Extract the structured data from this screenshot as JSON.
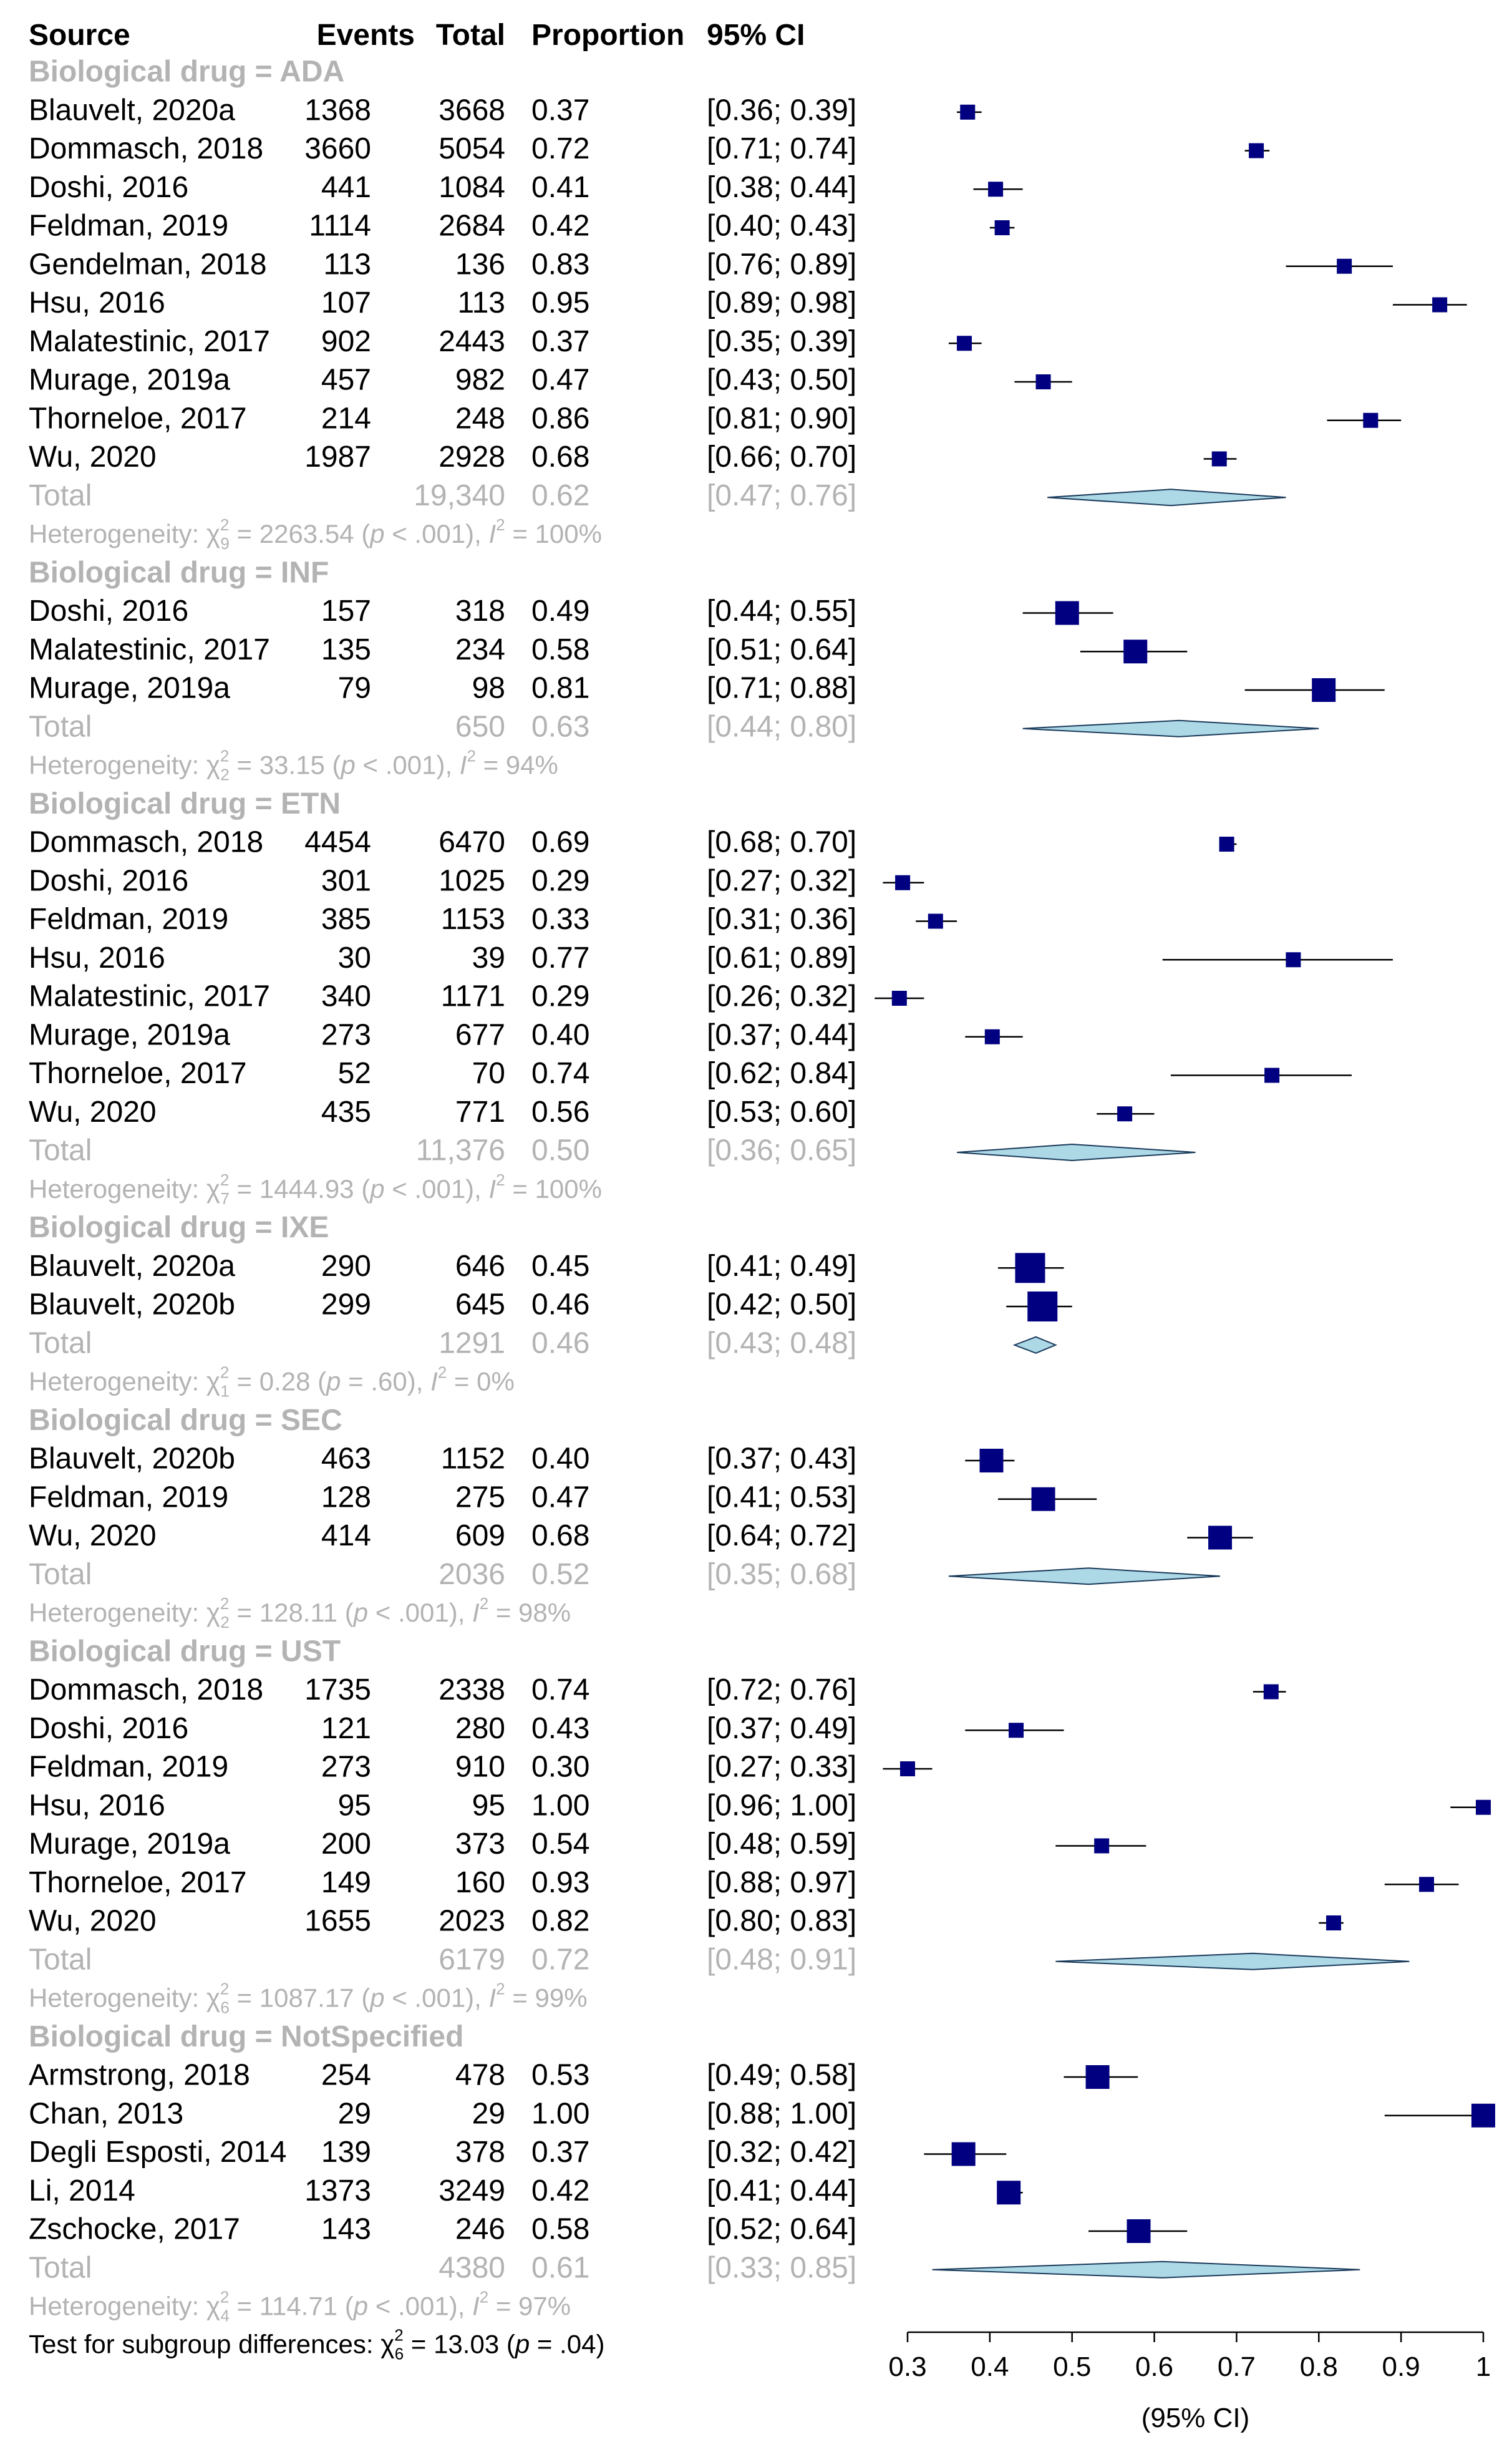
{
  "colors": {
    "text": "#000000",
    "muted": "#b3b3b3",
    "marker": "#000080",
    "diamond_fill": "#add8e6",
    "diamond_stroke": "#1a3a5a"
  },
  "header": {
    "source": "Source",
    "events": "Events",
    "total": "Total",
    "proportion": "Proportion",
    "ci": "95% CI"
  },
  "chart_data": {
    "type": "forest",
    "axis": {
      "range": [
        0.3,
        1.0
      ],
      "ticks": [
        "0.3",
        "0.4",
        "0.5",
        "0.6",
        "0.7",
        "0.8",
        "0.9",
        "1"
      ],
      "tick_values": [
        0.3,
        0.4,
        0.5,
        0.6,
        0.7,
        0.8,
        0.9,
        1.0
      ],
      "label": "(95% CI)"
    },
    "groups": [
      {
        "label": "Biological drug = ADA",
        "studies": [
          {
            "source": "Blauvelt, 2020a",
            "events": "1368",
            "total": "3668",
            "prop": "0.37",
            "ci": "[0.36; 0.39]",
            "est": 0.373,
            "lo": 0.36,
            "hi": 0.39,
            "weight": 1
          },
          {
            "source": "Dommasch, 2018",
            "events": "3660",
            "total": "5054",
            "prop": "0.72",
            "ci": "[0.71; 0.74]",
            "est": 0.724,
            "lo": 0.71,
            "hi": 0.74,
            "weight": 1
          },
          {
            "source": "Doshi, 2016",
            "events": "441",
            "total": "1084",
            "prop": "0.41",
            "ci": "[0.38; 0.44]",
            "est": 0.407,
            "lo": 0.38,
            "hi": 0.44,
            "weight": 1
          },
          {
            "source": "Feldman, 2019",
            "events": "1114",
            "total": "2684",
            "prop": "0.42",
            "ci": "[0.40; 0.43]",
            "est": 0.415,
            "lo": 0.4,
            "hi": 0.43,
            "weight": 1
          },
          {
            "source": "Gendelman, 2018",
            "events": "113",
            "total": "136",
            "prop": "0.83",
            "ci": "[0.76; 0.89]",
            "est": 0.831,
            "lo": 0.76,
            "hi": 0.89,
            "weight": 1
          },
          {
            "source": "Hsu, 2016",
            "events": "107",
            "total": "113",
            "prop": "0.95",
            "ci": "[0.89; 0.98]",
            "est": 0.947,
            "lo": 0.89,
            "hi": 0.98,
            "weight": 1
          },
          {
            "source": "Malatestinic, 2017",
            "events": "902",
            "total": "2443",
            "prop": "0.37",
            "ci": "[0.35; 0.39]",
            "est": 0.369,
            "lo": 0.35,
            "hi": 0.39,
            "weight": 1
          },
          {
            "source": "Murage, 2019a",
            "events": "457",
            "total": "982",
            "prop": "0.47",
            "ci": "[0.43; 0.50]",
            "est": 0.465,
            "lo": 0.43,
            "hi": 0.5,
            "weight": 1
          },
          {
            "source": "Thorneloe, 2017",
            "events": "214",
            "total": "248",
            "prop": "0.86",
            "ci": "[0.81; 0.90]",
            "est": 0.863,
            "lo": 0.81,
            "hi": 0.9,
            "weight": 1
          },
          {
            "source": "Wu, 2020",
            "events": "1987",
            "total": "2928",
            "prop": "0.68",
            "ci": "[0.66; 0.70]",
            "est": 0.679,
            "lo": 0.66,
            "hi": 0.7,
            "weight": 1
          }
        ],
        "pooled": {
          "label": "Total",
          "total": "19,340",
          "prop": "0.62",
          "ci": "[0.47; 0.76]",
          "est": 0.62,
          "lo": 0.47,
          "hi": 0.76
        },
        "heterogeneity": {
          "prefix": "Heterogeneity: ",
          "chi": "χ",
          "df": "9",
          "stat": " = 2263.54 (",
          "p": "p",
          "pval": " < .001), ",
          "i": "I",
          "ival": " = 100%"
        }
      },
      {
        "label": "Biological drug = INF",
        "studies": [
          {
            "source": "Doshi, 2016",
            "events": "157",
            "total": "318",
            "prop": "0.49",
            "ci": "[0.44; 0.55]",
            "est": 0.494,
            "lo": 0.44,
            "hi": 0.55,
            "weight": 2
          },
          {
            "source": "Malatestinic, 2017",
            "events": "135",
            "total": "234",
            "prop": "0.58",
            "ci": "[0.51; 0.64]",
            "est": 0.577,
            "lo": 0.51,
            "hi": 0.64,
            "weight": 2
          },
          {
            "source": "Murage, 2019a",
            "events": "79",
            "total": "98",
            "prop": "0.81",
            "ci": "[0.71; 0.88]",
            "est": 0.806,
            "lo": 0.71,
            "hi": 0.88,
            "weight": 2
          }
        ],
        "pooled": {
          "label": "Total",
          "total": "650",
          "prop": "0.63",
          "ci": "[0.44; 0.80]",
          "est": 0.63,
          "lo": 0.44,
          "hi": 0.8
        },
        "heterogeneity": {
          "prefix": "Heterogeneity: ",
          "chi": "χ",
          "df": "2",
          "stat": " = 33.15 (",
          "p": "p",
          "pval": " < .001), ",
          "i": "I",
          "ival": " = 94%"
        }
      },
      {
        "label": "Biological drug = ETN",
        "studies": [
          {
            "source": "Dommasch, 2018",
            "events": "4454",
            "total": "6470",
            "prop": "0.69",
            "ci": "[0.68; 0.70]",
            "est": 0.688,
            "lo": 0.68,
            "hi": 0.7,
            "weight": 1
          },
          {
            "source": "Doshi, 2016",
            "events": "301",
            "total": "1025",
            "prop": "0.29",
            "ci": "[0.27; 0.32]",
            "est": 0.294,
            "lo": 0.27,
            "hi": 0.32,
            "weight": 1
          },
          {
            "source": "Feldman, 2019",
            "events": "385",
            "total": "1153",
            "prop": "0.33",
            "ci": "[0.31; 0.36]",
            "est": 0.334,
            "lo": 0.31,
            "hi": 0.36,
            "weight": 1
          },
          {
            "source": "Hsu, 2016",
            "events": "30",
            "total": "39",
            "prop": "0.77",
            "ci": "[0.61; 0.89]",
            "est": 0.769,
            "lo": 0.61,
            "hi": 0.89,
            "weight": 1
          },
          {
            "source": "Malatestinic, 2017",
            "events": "340",
            "total": "1171",
            "prop": "0.29",
            "ci": "[0.26; 0.32]",
            "est": 0.29,
            "lo": 0.26,
            "hi": 0.32,
            "weight": 1
          },
          {
            "source": "Murage, 2019a",
            "events": "273",
            "total": "677",
            "prop": "0.40",
            "ci": "[0.37; 0.44]",
            "est": 0.403,
            "lo": 0.37,
            "hi": 0.44,
            "weight": 1
          },
          {
            "source": "Thorneloe, 2017",
            "events": "52",
            "total": "70",
            "prop": "0.74",
            "ci": "[0.62; 0.84]",
            "est": 0.743,
            "lo": 0.62,
            "hi": 0.84,
            "weight": 1
          },
          {
            "source": "Wu, 2020",
            "events": "435",
            "total": "771",
            "prop": "0.56",
            "ci": "[0.53; 0.60]",
            "est": 0.564,
            "lo": 0.53,
            "hi": 0.6,
            "weight": 1
          }
        ],
        "pooled": {
          "label": "Total",
          "total": "11,376",
          "prop": "0.50",
          "ci": "[0.36; 0.65]",
          "est": 0.5,
          "lo": 0.36,
          "hi": 0.65
        },
        "heterogeneity": {
          "prefix": "Heterogeneity: ",
          "chi": "χ",
          "df": "7",
          "stat": " = 1444.93 (",
          "p": "p",
          "pval": " < .001), ",
          "i": "I",
          "ival": " = 100%"
        }
      },
      {
        "label": "Biological drug = IXE",
        "studies": [
          {
            "source": "Blauvelt, 2020a",
            "events": "290",
            "total": "646",
            "prop": "0.45",
            "ci": "[0.41; 0.49]",
            "est": 0.449,
            "lo": 0.41,
            "hi": 0.49,
            "weight": 3
          },
          {
            "source": "Blauvelt, 2020b",
            "events": "299",
            "total": "645",
            "prop": "0.46",
            "ci": "[0.42; 0.50]",
            "est": 0.464,
            "lo": 0.42,
            "hi": 0.5,
            "weight": 3
          }
        ],
        "pooled": {
          "label": "Total",
          "total": "1291",
          "prop": "0.46",
          "ci": "[0.43; 0.48]",
          "est": 0.456,
          "lo": 0.43,
          "hi": 0.48
        },
        "heterogeneity": {
          "prefix": "Heterogeneity: ",
          "chi": "χ",
          "df": "1",
          "stat": " = 0.28 (",
          "p": "p",
          "pval": " = .60), ",
          "i": "I",
          "ival": " = 0%"
        }
      },
      {
        "label": "Biological drug = SEC",
        "studies": [
          {
            "source": "Blauvelt, 2020b",
            "events": "463",
            "total": "1152",
            "prop": "0.40",
            "ci": "[0.37; 0.43]",
            "est": 0.402,
            "lo": 0.37,
            "hi": 0.43,
            "weight": 2
          },
          {
            "source": "Feldman, 2019",
            "events": "128",
            "total": "275",
            "prop": "0.47",
            "ci": "[0.41; 0.53]",
            "est": 0.465,
            "lo": 0.41,
            "hi": 0.53,
            "weight": 2
          },
          {
            "source": "Wu, 2020",
            "events": "414",
            "total": "609",
            "prop": "0.68",
            "ci": "[0.64; 0.72]",
            "est": 0.68,
            "lo": 0.64,
            "hi": 0.72,
            "weight": 2
          }
        ],
        "pooled": {
          "label": "Total",
          "total": "2036",
          "prop": "0.52",
          "ci": "[0.35; 0.68]",
          "est": 0.52,
          "lo": 0.35,
          "hi": 0.68
        },
        "heterogeneity": {
          "prefix": "Heterogeneity: ",
          "chi": "χ",
          "df": "2",
          "stat": " = 128.11 (",
          "p": "p",
          "pval": " < .001), ",
          "i": "I",
          "ival": " = 98%"
        }
      },
      {
        "label": "Biological drug = UST",
        "studies": [
          {
            "source": "Dommasch, 2018",
            "events": "1735",
            "total": "2338",
            "prop": "0.74",
            "ci": "[0.72; 0.76]",
            "est": 0.742,
            "lo": 0.72,
            "hi": 0.76,
            "weight": 1
          },
          {
            "source": "Doshi, 2016",
            "events": "121",
            "total": "280",
            "prop": "0.43",
            "ci": "[0.37; 0.49]",
            "est": 0.432,
            "lo": 0.37,
            "hi": 0.49,
            "weight": 1
          },
          {
            "source": "Feldman, 2019",
            "events": "273",
            "total": "910",
            "prop": "0.30",
            "ci": "[0.27; 0.33]",
            "est": 0.3,
            "lo": 0.27,
            "hi": 0.33,
            "weight": 1
          },
          {
            "source": "Hsu, 2016",
            "events": "95",
            "total": "95",
            "prop": "1.00",
            "ci": "[0.96; 1.00]",
            "est": 1.0,
            "lo": 0.96,
            "hi": 1.0,
            "weight": 1
          },
          {
            "source": "Murage, 2019a",
            "events": "200",
            "total": "373",
            "prop": "0.54",
            "ci": "[0.48; 0.59]",
            "est": 0.536,
            "lo": 0.48,
            "hi": 0.59,
            "weight": 1
          },
          {
            "source": "Thorneloe, 2017",
            "events": "149",
            "total": "160",
            "prop": "0.93",
            "ci": "[0.88; 0.97]",
            "est": 0.931,
            "lo": 0.88,
            "hi": 0.97,
            "weight": 1
          },
          {
            "source": "Wu, 2020",
            "events": "1655",
            "total": "2023",
            "prop": "0.82",
            "ci": "[0.80; 0.83]",
            "est": 0.818,
            "lo": 0.8,
            "hi": 0.83,
            "weight": 1
          }
        ],
        "pooled": {
          "label": "Total",
          "total": "6179",
          "prop": "0.72",
          "ci": "[0.48; 0.91]",
          "est": 0.72,
          "lo": 0.48,
          "hi": 0.91
        },
        "heterogeneity": {
          "prefix": "Heterogeneity: ",
          "chi": "χ",
          "df": "6",
          "stat": " = 1087.17 (",
          "p": "p",
          "pval": " < .001), ",
          "i": "I",
          "ival": " = 99%"
        }
      },
      {
        "label": "Biological drug = NotSpecified",
        "studies": [
          {
            "source": "Armstrong, 2018",
            "events": "254",
            "total": "478",
            "prop": "0.53",
            "ci": "[0.49; 0.58]",
            "est": 0.531,
            "lo": 0.49,
            "hi": 0.58,
            "weight": 2
          },
          {
            "source": "Chan, 2013",
            "events": "29",
            "total": "29",
            "prop": "1.00",
            "ci": "[0.88; 1.00]",
            "est": 1.0,
            "lo": 0.88,
            "hi": 1.0,
            "weight": 2
          },
          {
            "source": "Degli Esposti, 2014",
            "events": "139",
            "total": "378",
            "prop": "0.37",
            "ci": "[0.32; 0.42]",
            "est": 0.368,
            "lo": 0.32,
            "hi": 0.42,
            "weight": 2
          },
          {
            "source": "Li, 2014",
            "events": "1373",
            "total": "3249",
            "prop": "0.42",
            "ci": "[0.41; 0.44]",
            "est": 0.423,
            "lo": 0.41,
            "hi": 0.44,
            "weight": 2
          },
          {
            "source": "Zschocke, 2017",
            "events": "143",
            "total": "246",
            "prop": "0.58",
            "ci": "[0.52; 0.64]",
            "est": 0.581,
            "lo": 0.52,
            "hi": 0.64,
            "weight": 2
          }
        ],
        "pooled": {
          "label": "Total",
          "total": "4380",
          "prop": "0.61",
          "ci": "[0.33; 0.85]",
          "est": 0.61,
          "lo": 0.33,
          "hi": 0.85
        },
        "heterogeneity": {
          "prefix": "Heterogeneity: ",
          "chi": "χ",
          "df": "4",
          "stat": " = 114.71 (",
          "p": "p",
          "pval": " < .001), ",
          "i": "I",
          "ival": " = 97%"
        }
      }
    ],
    "subgroup_test": {
      "prefix": "Test for subgroup differences: ",
      "chi": "χ",
      "df": "6",
      "stat": " = 13.03 (",
      "p": "p",
      "pval": " = .04)"
    }
  }
}
